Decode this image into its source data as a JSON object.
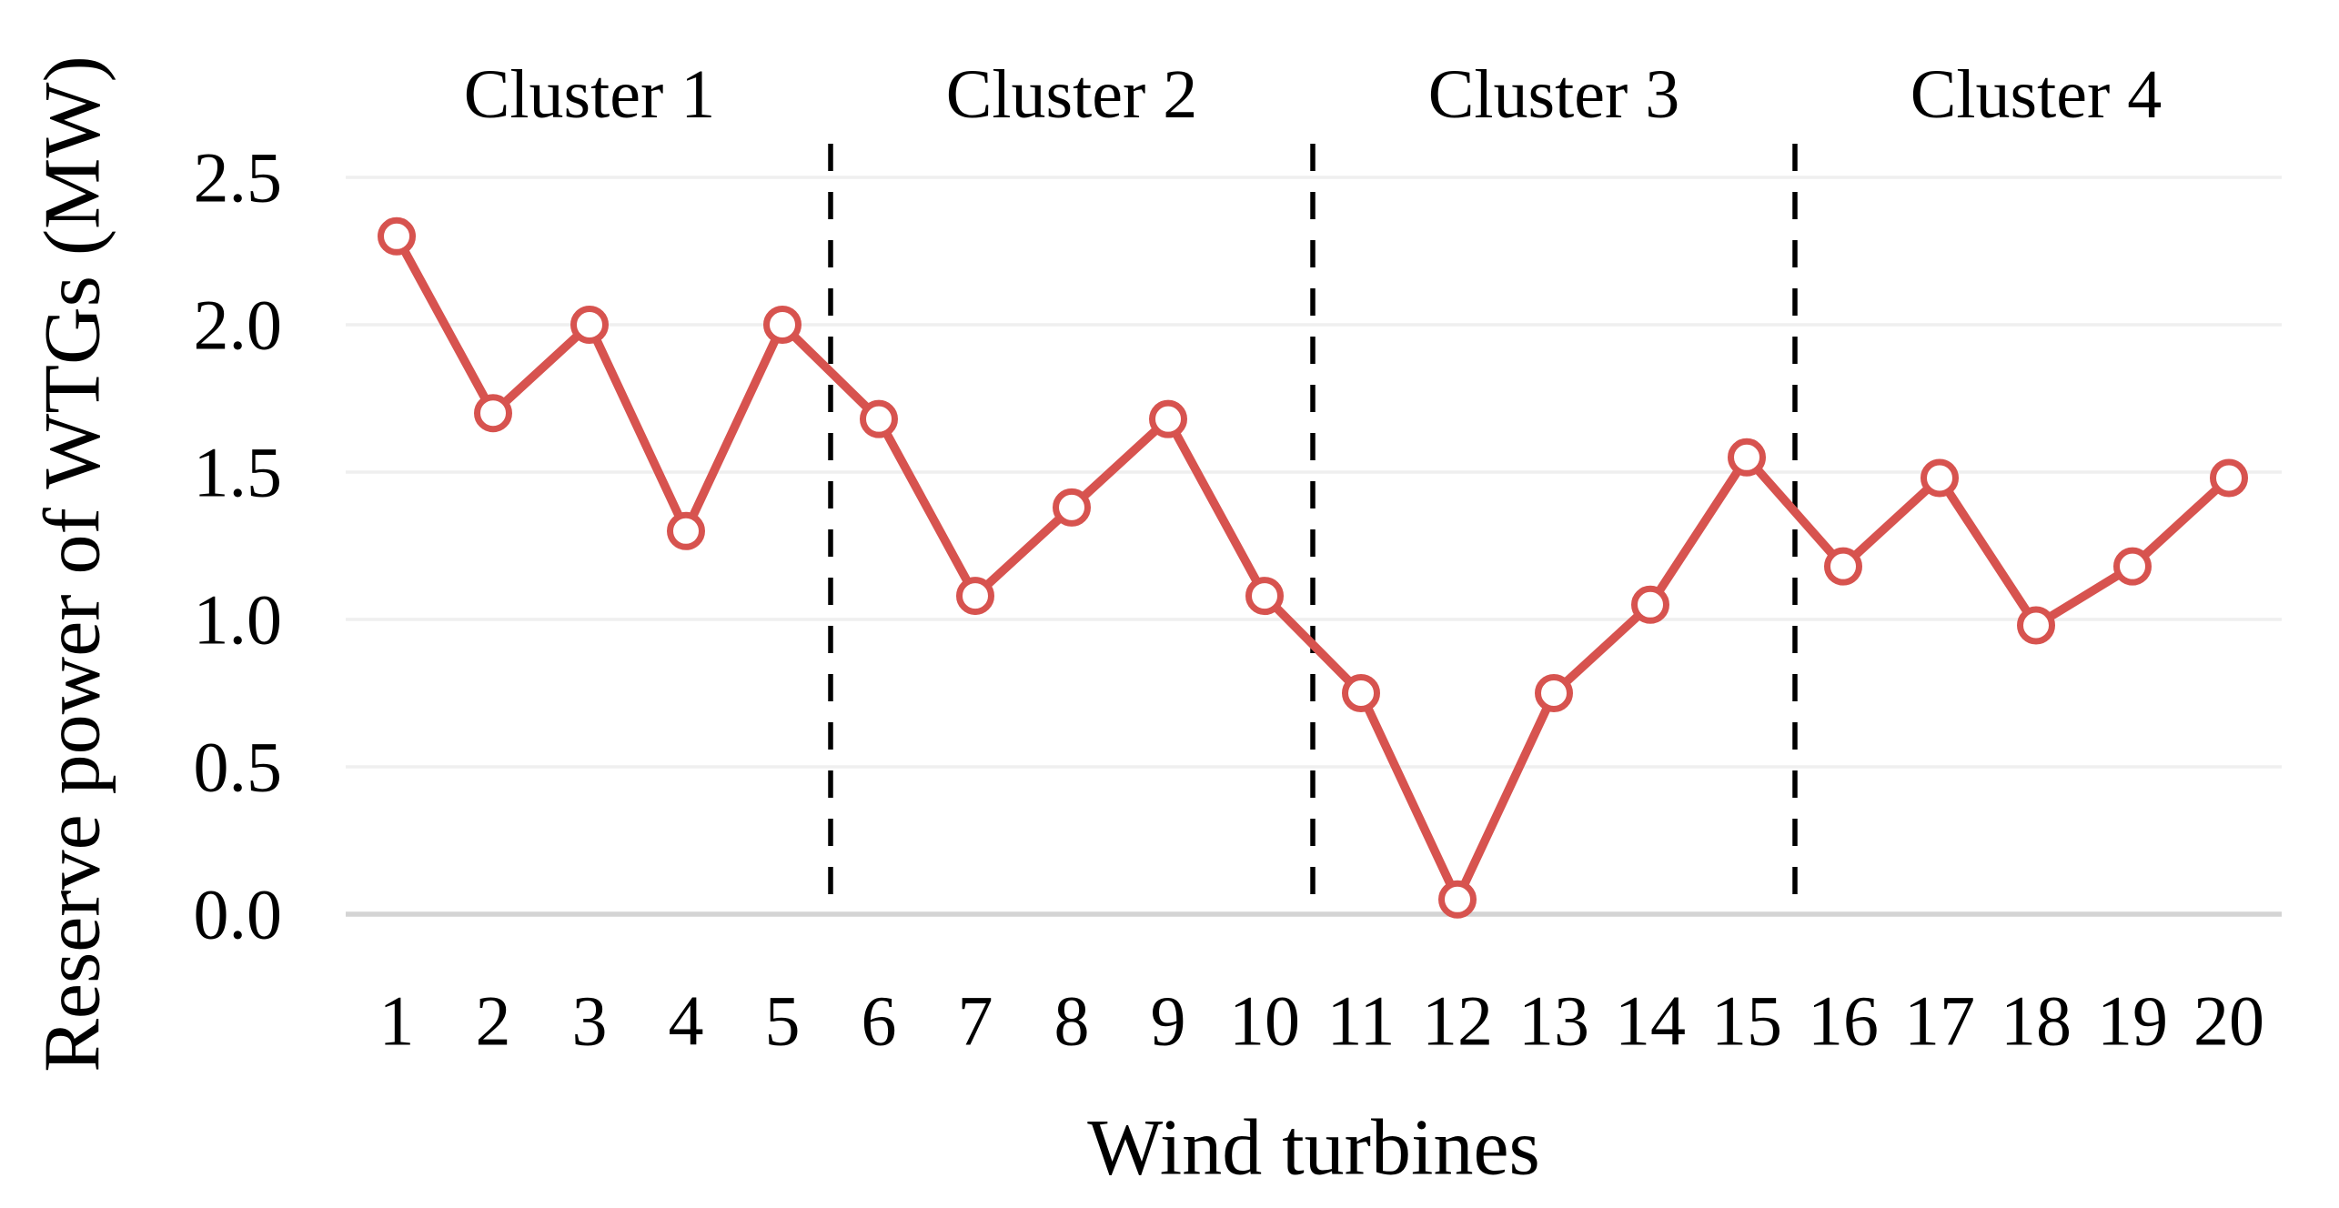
{
  "chart_data": {
    "type": "line",
    "title": "",
    "xlabel": "Wind turbines",
    "ylabel": "Reserve power of WTGs (MW)",
    "x": [
      1,
      2,
      3,
      4,
      5,
      6,
      7,
      8,
      9,
      10,
      11,
      12,
      13,
      14,
      15,
      16,
      17,
      18,
      19,
      20
    ],
    "xtick_labels": [
      "1",
      "2",
      "3",
      "4",
      "5",
      "6",
      "7",
      "8",
      "9",
      "10",
      "11",
      "12",
      "13",
      "14",
      "15",
      "16",
      "17",
      "18",
      "19",
      "20"
    ],
    "series": [
      {
        "name": "Reserve power of WTGs",
        "values": [
          2.3,
          1.7,
          2.0,
          1.3,
          2.0,
          1.68,
          1.08,
          1.38,
          1.68,
          1.08,
          0.75,
          0.05,
          0.75,
          1.05,
          1.55,
          1.18,
          1.48,
          0.98,
          1.18,
          1.48
        ]
      }
    ],
    "ylim": [
      0.0,
      2.5
    ],
    "yticks": [
      0.0,
      0.5,
      1.0,
      1.5,
      2.0,
      2.5
    ],
    "ytick_labels": [
      "0.0",
      "0.5",
      "1.0",
      "1.5",
      "2.0",
      "2.5"
    ],
    "grid": "horizontal-only",
    "legend": "none",
    "clusters": [
      {
        "label": "Cluster 1",
        "from": 1,
        "to": 5
      },
      {
        "label": "Cluster 2",
        "from": 6,
        "to": 10
      },
      {
        "label": "Cluster 3",
        "from": 11,
        "to": 15
      },
      {
        "label": "Cluster 4",
        "from": 16,
        "to": 20
      }
    ],
    "separators_between": [
      [
        5,
        6
      ],
      [
        10,
        11
      ],
      [
        15,
        16
      ]
    ],
    "separator_style": "dashed",
    "colors": {
      "line": "#d7534f",
      "marker_fill": "#ffffff",
      "marker_edge": "#d7534f",
      "gridline": "#efefef",
      "axis_line": "#d4d4d4",
      "separator": "#000000",
      "text": "#000000",
      "background": "#ffffff"
    }
  }
}
